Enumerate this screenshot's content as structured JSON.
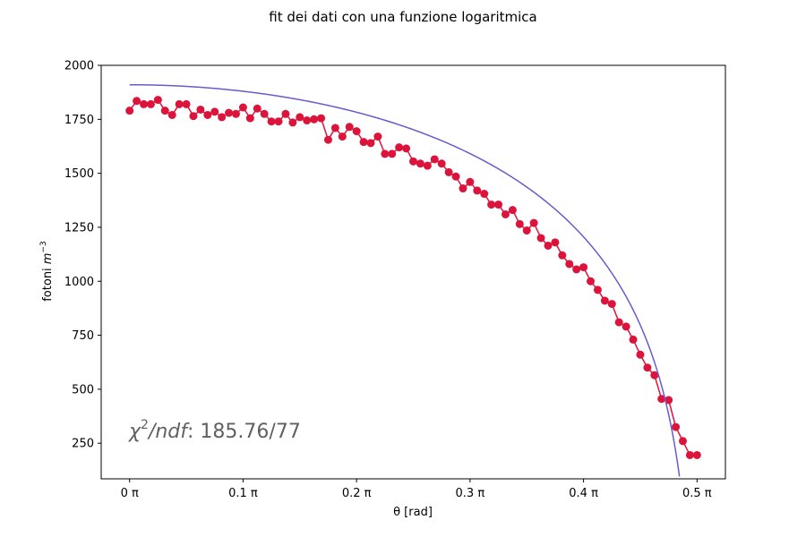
{
  "chart_data": {
    "type": "scatter",
    "title": "fit dei dati con una funzione logaritmica",
    "xlabel": "θ [rad]",
    "ylabel": "fotoni m⁻³",
    "ylabel_base": "fotoni ",
    "ylabel_unit": "m",
    "ylabel_exp": "−3",
    "xlim": [
      -0.025,
      0.525
    ],
    "ylim": [
      85,
      2000
    ],
    "x_ticks": [
      0,
      0.1,
      0.2,
      0.3,
      0.4,
      0.5
    ],
    "x_tick_labels": [
      "0 π",
      "0.1 π",
      "0.2 π",
      "0.3 π",
      "0.4 π",
      "0.5 π"
    ],
    "y_ticks": [
      250,
      500,
      750,
      1000,
      1250,
      1500,
      1750,
      2000
    ],
    "y_tick_labels": [
      "250",
      "500",
      "750",
      "1000",
      "1250",
      "1500",
      "1750",
      "2000"
    ],
    "grid": false,
    "annotation": {
      "chi": "χ",
      "exp": "2",
      "ndf": "/ndf",
      "value": ": 185.76/77"
    },
    "series": [
      {
        "kind": "data",
        "color": "#dc143c",
        "x": [
          0.0,
          0.00625,
          0.0125,
          0.01875,
          0.025,
          0.03125,
          0.0375,
          0.04375,
          0.05,
          0.05625,
          0.0625,
          0.06875,
          0.075,
          0.08125,
          0.0875,
          0.09375,
          0.1,
          0.10625,
          0.1125,
          0.11875,
          0.125,
          0.13125,
          0.1375,
          0.14375,
          0.15,
          0.15625,
          0.1625,
          0.16875,
          0.175,
          0.18125,
          0.1875,
          0.19375,
          0.2,
          0.20625,
          0.2125,
          0.21875,
          0.225,
          0.23125,
          0.2375,
          0.24375,
          0.25,
          0.25625,
          0.2625,
          0.26875,
          0.275,
          0.28125,
          0.2875,
          0.29375,
          0.3,
          0.30625,
          0.3125,
          0.31875,
          0.325,
          0.33125,
          0.3375,
          0.34375,
          0.35,
          0.35625,
          0.3625,
          0.36875,
          0.375,
          0.38125,
          0.3875,
          0.39375,
          0.4,
          0.40625,
          0.4125,
          0.41875,
          0.425,
          0.43125,
          0.4375,
          0.44375,
          0.45,
          0.45625,
          0.4625,
          0.46875,
          0.475,
          0.48125,
          0.4875,
          0.49375,
          0.5
        ],
        "y": [
          1790,
          1835,
          1820,
          1820,
          1840,
          1790,
          1770,
          1820,
          1820,
          1765,
          1795,
          1770,
          1785,
          1760,
          1780,
          1775,
          1805,
          1755,
          1800,
          1775,
          1740,
          1740,
          1775,
          1735,
          1760,
          1745,
          1750,
          1755,
          1655,
          1710,
          1670,
          1715,
          1695,
          1645,
          1640,
          1670,
          1590,
          1590,
          1620,
          1615,
          1555,
          1545,
          1535,
          1565,
          1545,
          1505,
          1485,
          1430,
          1460,
          1420,
          1405,
          1355,
          1355,
          1310,
          1330,
          1265,
          1235,
          1270,
          1200,
          1165,
          1180,
          1120,
          1080,
          1055,
          1065,
          1000,
          960,
          910,
          895,
          810,
          790,
          730,
          660,
          600,
          565,
          455,
          450,
          325,
          260,
          195,
          195
        ]
      },
      {
        "kind": "fit",
        "color": "#6a5acd",
        "fit": {
          "model": "log",
          "a": 1910,
          "b": 600
        }
      }
    ]
  }
}
